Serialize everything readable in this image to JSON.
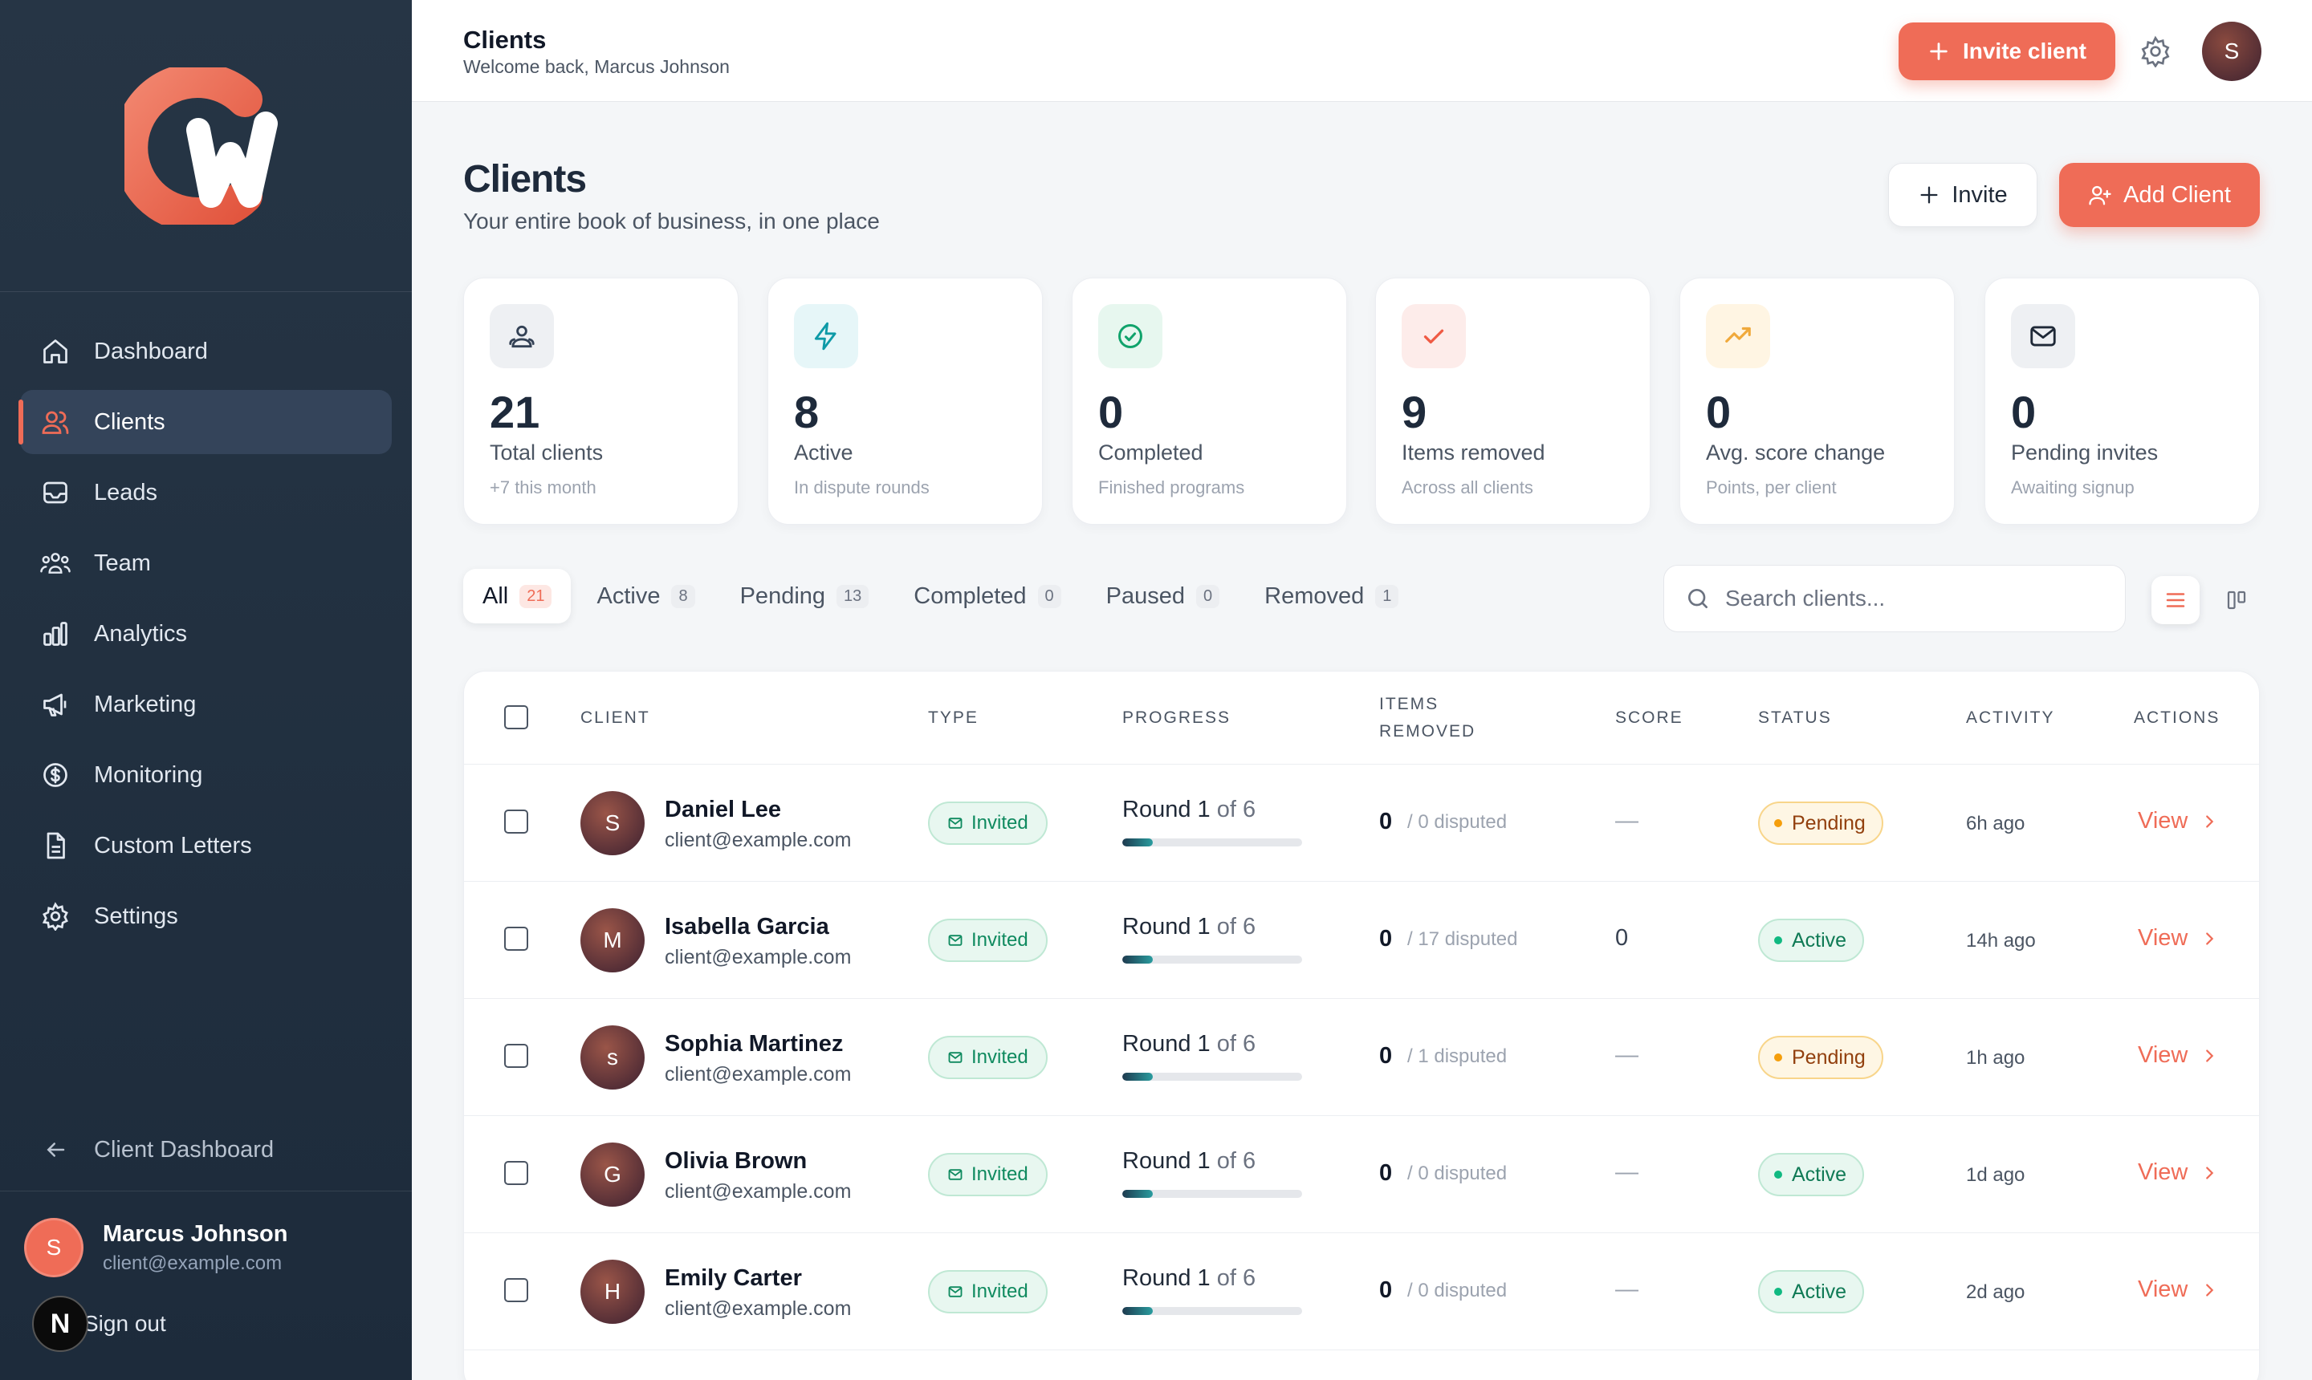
{
  "sidebar": {
    "nav": [
      {
        "label": "Dashboard",
        "icon": "home-icon"
      },
      {
        "label": "Clients",
        "icon": "users-icon",
        "active": true
      },
      {
        "label": "Leads",
        "icon": "inbox-icon"
      },
      {
        "label": "Team",
        "icon": "team-icon"
      },
      {
        "label": "Analytics",
        "icon": "bar-chart-icon"
      },
      {
        "label": "Marketing",
        "icon": "megaphone-icon"
      },
      {
        "label": "Monitoring",
        "icon": "dollar-circle-icon"
      },
      {
        "label": "Custom Letters",
        "icon": "document-icon"
      },
      {
        "label": "Settings",
        "icon": "gear-icon"
      }
    ],
    "back_label": "Client Dashboard",
    "user": {
      "initial": "S",
      "name": "Marcus Johnson",
      "email": "client@example.com"
    },
    "signout_label": "Sign out",
    "badge_letter": "N"
  },
  "topbar": {
    "title": "Clients",
    "subtitle": "Welcome back, Marcus Johnson",
    "invite_label": "Invite client",
    "avatar_initial": "S"
  },
  "page": {
    "title": "Clients",
    "subtitle": "Your entire book of business, in one place",
    "invite_label": "Invite",
    "add_label": "Add Client"
  },
  "stats": [
    {
      "value": "21",
      "label": "Total clients",
      "note": "+7 this month",
      "icon": "user-group-icon",
      "bg": "#eef0f3",
      "color": "#475569"
    },
    {
      "value": "8",
      "label": "Active",
      "note": "In dispute rounds",
      "icon": "bolt-icon",
      "bg": "#e6f6f8",
      "color": "#0e9aa7"
    },
    {
      "value": "0",
      "label": "Completed",
      "note": "Finished programs",
      "icon": "check-circle-icon",
      "bg": "#e7f7ef",
      "color": "#10a36b"
    },
    {
      "value": "9",
      "label": "Items removed",
      "note": "Across all clients",
      "icon": "check-icon",
      "bg": "#fdecea",
      "color": "#ef5a44"
    },
    {
      "value": "0",
      "label": "Avg. score change",
      "note": "Points, per client",
      "icon": "trend-up-icon",
      "bg": "#fff5e3",
      "color": "#f0a93b"
    },
    {
      "value": "0",
      "label": "Pending invites",
      "note": "Awaiting signup",
      "icon": "mail-icon",
      "bg": "#eef0f3",
      "color": "#334155"
    }
  ],
  "tabs": [
    {
      "label": "All",
      "count": "21",
      "active": true
    },
    {
      "label": "Active",
      "count": "8"
    },
    {
      "label": "Pending",
      "count": "13"
    },
    {
      "label": "Completed",
      "count": "0"
    },
    {
      "label": "Paused",
      "count": "0"
    },
    {
      "label": "Removed",
      "count": "1"
    }
  ],
  "search": {
    "placeholder": "Search clients..."
  },
  "table": {
    "headers": {
      "client": "CLIENT",
      "type": "TYPE",
      "progress": "PROGRESS",
      "items_removed": "ITEMS REMOVED",
      "score": "SCORE",
      "status": "STATUS",
      "activity": "ACTIVITY",
      "actions": "ACTIONS"
    },
    "rows": [
      {
        "initial": "S",
        "name": "Daniel Lee",
        "email": "client@example.com",
        "type": "Invited",
        "round": "1",
        "of": "6",
        "progress": 0.17,
        "removed": "0",
        "disputed": "/ 0 disputed",
        "score": "—",
        "status": "Pending",
        "activity": "6h ago",
        "action": "View"
      },
      {
        "initial": "M",
        "name": "Isabella Garcia",
        "email": "client@example.com",
        "type": "Invited",
        "round": "1",
        "of": "6",
        "progress": 0.17,
        "removed": "0",
        "disputed": "/ 17 disputed",
        "score": "0",
        "status": "Active",
        "activity": "14h ago",
        "action": "View"
      },
      {
        "initial": "s",
        "name": "Sophia Martinez",
        "email": "client@example.com",
        "type": "Invited",
        "round": "1",
        "of": "6",
        "progress": 0.17,
        "removed": "0",
        "disputed": "/ 1 disputed",
        "score": "—",
        "status": "Pending",
        "activity": "1h ago",
        "action": "View"
      },
      {
        "initial": "G",
        "name": "Olivia Brown",
        "email": "client@example.com",
        "type": "Invited",
        "round": "1",
        "of": "6",
        "progress": 0.17,
        "removed": "0",
        "disputed": "/ 0 disputed",
        "score": "—",
        "status": "Active",
        "activity": "1d ago",
        "action": "View"
      },
      {
        "initial": "H",
        "name": "Emily Carter",
        "email": "client@example.com",
        "type": "Invited",
        "round": "1",
        "of": "6",
        "progress": 0.17,
        "removed": "0",
        "disputed": "/ 0 disputed",
        "score": "—",
        "status": "Active",
        "activity": "2d ago",
        "action": "View"
      }
    ]
  }
}
